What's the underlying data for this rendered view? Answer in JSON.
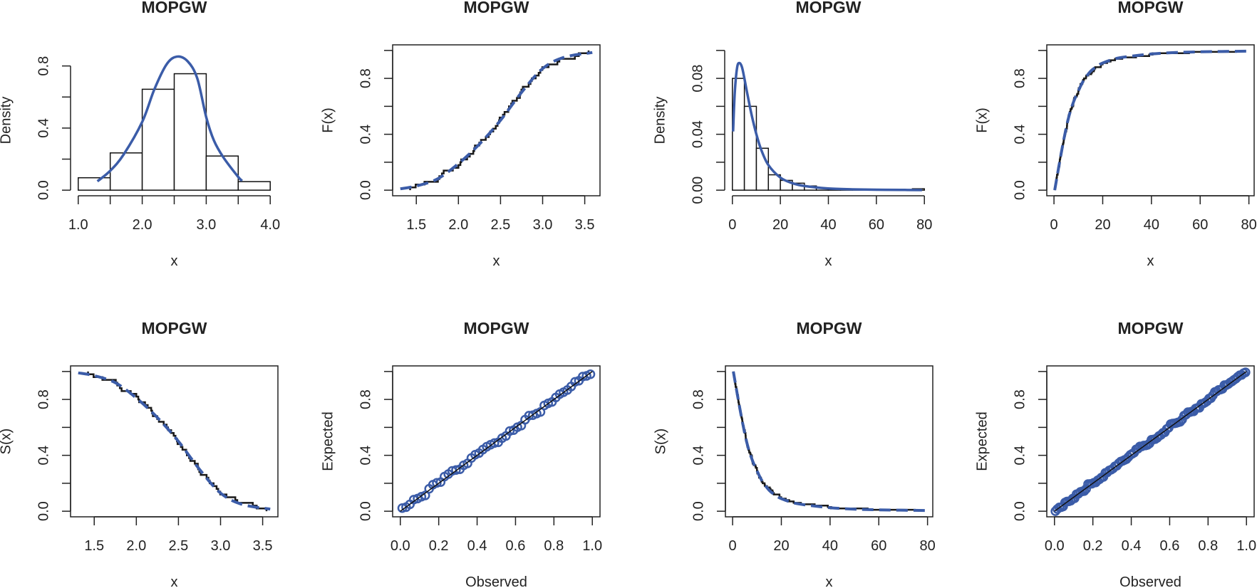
{
  "colors": {
    "fitted": "#3b5ca8",
    "empirical": "#1a1a1a",
    "axis": "#222222"
  },
  "chart_data": [
    {
      "type": "histogram",
      "title": "MOPGW",
      "xlabel": "x",
      "ylabel": "Density",
      "xlim": [
        1.0,
        4.0
      ],
      "ylim": [
        0,
        0.9
      ],
      "x_ticks": [
        1.0,
        1.5,
        2.0,
        2.5,
        3.0,
        3.5,
        4.0
      ],
      "x_tick_labels": [
        "1.0",
        "",
        "2.0",
        "",
        "3.0",
        "",
        "4.0"
      ],
      "y_ticks": [
        0,
        0.2,
        0.4,
        0.6,
        0.8
      ],
      "y_tick_labels": [
        "0.0",
        "",
        "0.4",
        "",
        "0.8"
      ],
      "bins": {
        "breaks": [
          1.0,
          1.5,
          2.0,
          2.5,
          3.0,
          3.5,
          4.0
        ],
        "density": [
          0.08,
          0.24,
          0.65,
          0.75,
          0.22,
          0.055
        ]
      },
      "fitted": {
        "x": [
          1.3,
          1.5,
          1.71,
          2.0,
          2.19,
          2.38,
          2.54,
          2.71,
          2.86,
          3.0,
          3.12,
          3.27,
          3.49,
          3.56
        ],
        "y": [
          0.057,
          0.125,
          0.23,
          0.44,
          0.65,
          0.81,
          0.86,
          0.83,
          0.72,
          0.47,
          0.32,
          0.21,
          0.09,
          0.06
        ]
      }
    },
    {
      "type": "ecdf",
      "title": "MOPGW",
      "xlabel": "x",
      "ylabel": "F(x)",
      "xlim": [
        1.31,
        3.59
      ],
      "ylim": [
        0,
        1
      ],
      "x_ticks": [
        1.5,
        2.0,
        2.5,
        3.0,
        3.5
      ],
      "x_tick_labels": [
        "1.5",
        "2.0",
        "2.5",
        "3.0",
        "3.5"
      ],
      "y_ticks": [
        0,
        0.2,
        0.4,
        0.6,
        0.8,
        1.0
      ],
      "y_tick_labels": [
        "0.0",
        "",
        "0.4",
        "",
        "0.8",
        ""
      ],
      "fitted": {
        "x": [
          1.31,
          1.5,
          1.75,
          2.0,
          2.25,
          2.5,
          2.75,
          3.0,
          3.25,
          3.59
        ],
        "y": [
          0.01,
          0.03,
          0.08,
          0.19,
          0.33,
          0.5,
          0.7,
          0.87,
          0.95,
          0.985
        ]
      }
    },
    {
      "type": "histogram",
      "title": "MOPGW",
      "xlabel": "x",
      "ylabel": "Density",
      "xlim": [
        0,
        80
      ],
      "ylim": [
        0,
        0.1
      ],
      "x_ticks": [
        0,
        20,
        40,
        60,
        80
      ],
      "x_tick_labels": [
        "0",
        "20",
        "40",
        "60",
        "80"
      ],
      "y_ticks": [
        0,
        0.02,
        0.04,
        0.06,
        0.08,
        0.1
      ],
      "y_tick_labels": [
        "0.00",
        "",
        "0.04",
        "",
        "0.08",
        ""
      ],
      "bins": {
        "breaks": [
          0,
          5,
          10,
          15,
          20,
          25,
          30,
          35,
          40,
          45,
          50,
          55,
          60,
          65,
          70,
          75,
          80
        ],
        "density": [
          0.08,
          0.06,
          0.03,
          0.011,
          0.007,
          0.005,
          0.003,
          0.0015,
          0.001,
          0.0008,
          0.0005,
          0.0003,
          0.0002,
          0.0002,
          0.0001,
          0.001
        ]
      },
      "fitted": {
        "x": [
          0.3,
          1,
          2,
          3,
          4,
          5,
          6,
          8,
          10,
          12,
          15,
          20,
          25,
          30,
          40,
          50,
          60,
          70,
          79
        ],
        "y": [
          0.042,
          0.07,
          0.088,
          0.091,
          0.088,
          0.08,
          0.071,
          0.054,
          0.04,
          0.029,
          0.018,
          0.009,
          0.005,
          0.003,
          0.0012,
          0.0006,
          0.0003,
          0.0002,
          0.0001
        ]
      }
    },
    {
      "type": "ecdf",
      "title": "MOPGW",
      "xlabel": "x",
      "ylabel": "F(x)",
      "xlim": [
        0.2,
        79
      ],
      "ylim": [
        0,
        1
      ],
      "x_ticks": [
        0,
        20,
        40,
        60,
        80
      ],
      "x_tick_labels": [
        "0",
        "20",
        "40",
        "60",
        "80"
      ],
      "y_ticks": [
        0,
        0.2,
        0.4,
        0.6,
        0.8,
        1.0
      ],
      "y_tick_labels": [
        "0.0",
        "",
        "0.4",
        "",
        "0.8",
        ""
      ],
      "fitted": {
        "x": [
          0.3,
          2,
          4,
          6,
          8,
          10,
          12,
          15,
          18,
          20,
          25,
          30,
          40,
          50,
          60,
          79
        ],
        "y": [
          0,
          0.17,
          0.36,
          0.52,
          0.63,
          0.71,
          0.78,
          0.85,
          0.89,
          0.91,
          0.94,
          0.955,
          0.975,
          0.985,
          0.99,
          0.995
        ]
      }
    },
    {
      "type": "survival",
      "title": "MOPGW",
      "xlabel": "x",
      "ylabel": "S(x)",
      "xlim": [
        1.31,
        3.59
      ],
      "ylim": [
        0,
        1
      ],
      "x_ticks": [
        1.5,
        2.0,
        2.5,
        3.0,
        3.5
      ],
      "x_tick_labels": [
        "1.5",
        "2.0",
        "2.5",
        "3.0",
        "3.5"
      ],
      "y_ticks": [
        0,
        0.2,
        0.4,
        0.6,
        0.8,
        1.0
      ],
      "y_tick_labels": [
        "0.0",
        "",
        "0.4",
        "",
        "0.8",
        ""
      ],
      "fitted": {
        "x": [
          1.31,
          1.5,
          1.75,
          2.0,
          2.25,
          2.5,
          2.75,
          3.0,
          3.25,
          3.59
        ],
        "y": [
          0.99,
          0.97,
          0.92,
          0.81,
          0.67,
          0.5,
          0.3,
          0.13,
          0.05,
          0.015
        ]
      }
    },
    {
      "type": "pp",
      "title": "MOPGW",
      "xlabel": "Observed",
      "ylabel": "Expected",
      "xlim": [
        0,
        1
      ],
      "ylim": [
        0,
        1
      ],
      "x_ticks": [
        0,
        0.2,
        0.4,
        0.6,
        0.8,
        1.0
      ],
      "x_tick_labels": [
        "0.0",
        "0.2",
        "0.4",
        "0.6",
        "0.8",
        "1.0"
      ],
      "y_ticks": [
        0,
        0.2,
        0.4,
        0.6,
        0.8,
        1.0
      ],
      "y_tick_labels": [
        "0.0",
        "",
        "0.4",
        "",
        "0.8",
        ""
      ],
      "reference_line": {
        "x": [
          0,
          1
        ],
        "y": [
          0,
          1
        ]
      }
    },
    {
      "type": "survival",
      "title": "MOPGW",
      "xlabel": "x",
      "ylabel": "S(x)",
      "xlim": [
        0.2,
        79
      ],
      "ylim": [
        0,
        1
      ],
      "x_ticks": [
        0,
        20,
        40,
        60,
        80
      ],
      "x_tick_labels": [
        "0",
        "20",
        "40",
        "60",
        "80"
      ],
      "y_ticks": [
        0,
        0.2,
        0.4,
        0.6,
        0.8,
        1.0
      ],
      "y_tick_labels": [
        "0.0",
        "",
        "0.4",
        "",
        "0.8",
        ""
      ],
      "fitted": {
        "x": [
          0.3,
          2,
          4,
          6,
          8,
          10,
          12,
          15,
          18,
          20,
          25,
          30,
          40,
          50,
          60,
          79
        ],
        "y": [
          1,
          0.83,
          0.64,
          0.48,
          0.37,
          0.29,
          0.22,
          0.15,
          0.11,
          0.09,
          0.06,
          0.045,
          0.025,
          0.015,
          0.01,
          0.005
        ]
      }
    },
    {
      "type": "pp",
      "title": "MOPGW",
      "xlabel": "Observed",
      "ylabel": "Expected",
      "xlim": [
        0,
        1
      ],
      "ylim": [
        0,
        1
      ],
      "x_ticks": [
        0,
        0.2,
        0.4,
        0.6,
        0.8,
        1.0
      ],
      "x_tick_labels": [
        "0.0",
        "0.2",
        "0.4",
        "0.6",
        "0.8",
        "1.0"
      ],
      "y_ticks": [
        0,
        0.2,
        0.4,
        0.6,
        0.8,
        1.0
      ],
      "y_tick_labels": [
        "0.0",
        "",
        "0.4",
        "",
        "0.8",
        ""
      ],
      "reference_line": {
        "x": [
          0,
          1
        ],
        "y": [
          0,
          1
        ]
      }
    }
  ]
}
